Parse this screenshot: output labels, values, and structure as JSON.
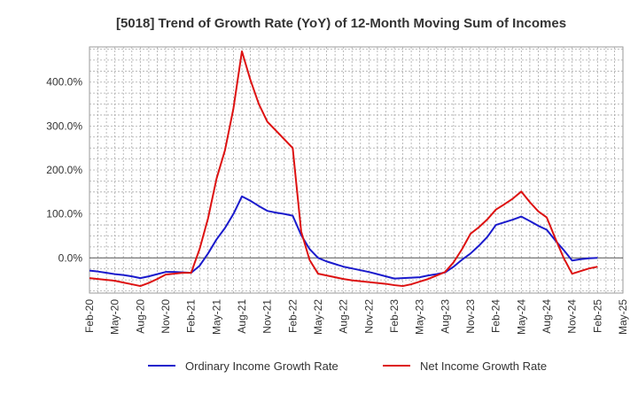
{
  "chart_data": {
    "type": "line",
    "title": "[5018]  Trend of Growth Rate (YoY) of 12-Month Moving Sum of Incomes",
    "xlabel": "",
    "ylabel": "",
    "ylim": [
      -80,
      480
    ],
    "grid": true,
    "legend_position": "bottom",
    "y_ticks": [
      0,
      100,
      200,
      300,
      400
    ],
    "y_tick_labels": [
      "0.0%",
      "100.0%",
      "200.0%",
      "300.0%",
      "400.0%"
    ],
    "x_tick_labels": [
      "Feb-20",
      "May-20",
      "Aug-20",
      "Nov-20",
      "Feb-21",
      "May-21",
      "Aug-21",
      "Nov-21",
      "Feb-22",
      "May-22",
      "Aug-22",
      "Nov-22",
      "Feb-23",
      "May-23",
      "Aug-23",
      "Nov-23",
      "Feb-24",
      "May-24",
      "Aug-24",
      "Nov-24",
      "Feb-25",
      "May-25"
    ],
    "x": [
      "2020-02",
      "2020-03",
      "2020-04",
      "2020-05",
      "2020-06",
      "2020-07",
      "2020-08",
      "2020-09",
      "2020-10",
      "2020-11",
      "2020-12",
      "2021-01",
      "2021-02",
      "2021-03",
      "2021-04",
      "2021-05",
      "2021-06",
      "2021-07",
      "2021-08",
      "2021-09",
      "2021-10",
      "2021-11",
      "2021-12",
      "2022-01",
      "2022-02",
      "2022-03",
      "2022-04",
      "2022-05",
      "2022-06",
      "2022-07",
      "2022-08",
      "2022-09",
      "2022-10",
      "2022-11",
      "2022-12",
      "2023-01",
      "2023-02",
      "2023-03",
      "2023-04",
      "2023-05",
      "2023-06",
      "2023-07",
      "2023-08",
      "2023-09",
      "2023-10",
      "2023-11",
      "2023-12",
      "2024-01",
      "2024-02",
      "2024-03",
      "2024-04",
      "2024-05",
      "2024-06",
      "2024-07",
      "2024-08",
      "2024-09",
      "2024-10",
      "2024-11",
      "2024-12",
      "2025-01",
      "2025-02"
    ],
    "series": [
      {
        "name": "Ordinary Income Growth Rate",
        "color": "#1a1acc",
        "values": [
          -29,
          -31,
          -34,
          -37,
          -39,
          -42,
          -46,
          -42,
          -37,
          -32,
          -32,
          -33,
          -34,
          -18,
          10,
          42,
          68,
          100,
          140,
          130,
          118,
          107,
          103,
          100,
          96,
          52,
          20,
          0,
          -8,
          -14,
          -20,
          -24,
          -28,
          -32,
          -37,
          -42,
          -47,
          -46,
          -45,
          -44,
          -40,
          -37,
          -33,
          -20,
          -4,
          10,
          28,
          48,
          75,
          81,
          87,
          94,
          84,
          73,
          64,
          40,
          18,
          -6,
          -3,
          -1,
          0
        ]
      },
      {
        "name": "Net Income Growth Rate",
        "color": "#dd1111",
        "values": [
          -46,
          -48,
          -50,
          -52,
          -56,
          -60,
          -64,
          -57,
          -48,
          -38,
          -36,
          -34,
          -34,
          20,
          90,
          180,
          245,
          340,
          470,
          405,
          350,
          310,
          290,
          270,
          250,
          60,
          -5,
          -36,
          -40,
          -44,
          -48,
          -51,
          -53,
          -55,
          -57,
          -59,
          -62,
          -64,
          -60,
          -54,
          -48,
          -40,
          -32,
          -10,
          20,
          55,
          70,
          88,
          110,
          122,
          135,
          151,
          127,
          106,
          92,
          45,
          0,
          -36,
          -30,
          -24,
          -20
        ]
      }
    ]
  }
}
